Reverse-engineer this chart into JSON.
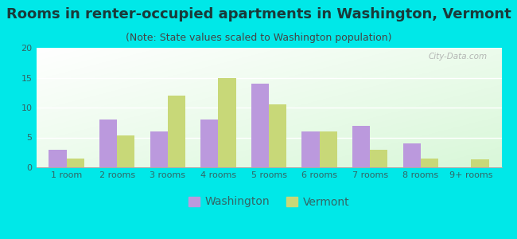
{
  "title": "Rooms in renter-occupied apartments in Washington, Vermont",
  "subtitle": "(Note: State values scaled to Washington population)",
  "categories": [
    "1 room",
    "2 rooms",
    "3 rooms",
    "4 rooms",
    "5 rooms",
    "6 rooms",
    "7 rooms",
    "8 rooms",
    "9+ rooms"
  ],
  "washington_values": [
    3,
    8,
    6,
    8,
    14,
    6,
    7,
    4,
    0
  ],
  "vermont_values": [
    1.5,
    5.3,
    12,
    15,
    10.5,
    6,
    3,
    1.5,
    1.3
  ],
  "washington_color": "#bb99dd",
  "vermont_color": "#c8d878",
  "background_color": "#00e8e8",
  "ylim": [
    0,
    20
  ],
  "yticks": [
    0,
    5,
    10,
    15,
    20
  ],
  "bar_width": 0.35,
  "title_fontsize": 13,
  "subtitle_fontsize": 9,
  "tick_fontsize": 8,
  "legend_fontsize": 10,
  "title_color": "#1a3a3a",
  "subtitle_color": "#444444",
  "tick_color": "#336666",
  "watermark_text": "City-Data.com"
}
